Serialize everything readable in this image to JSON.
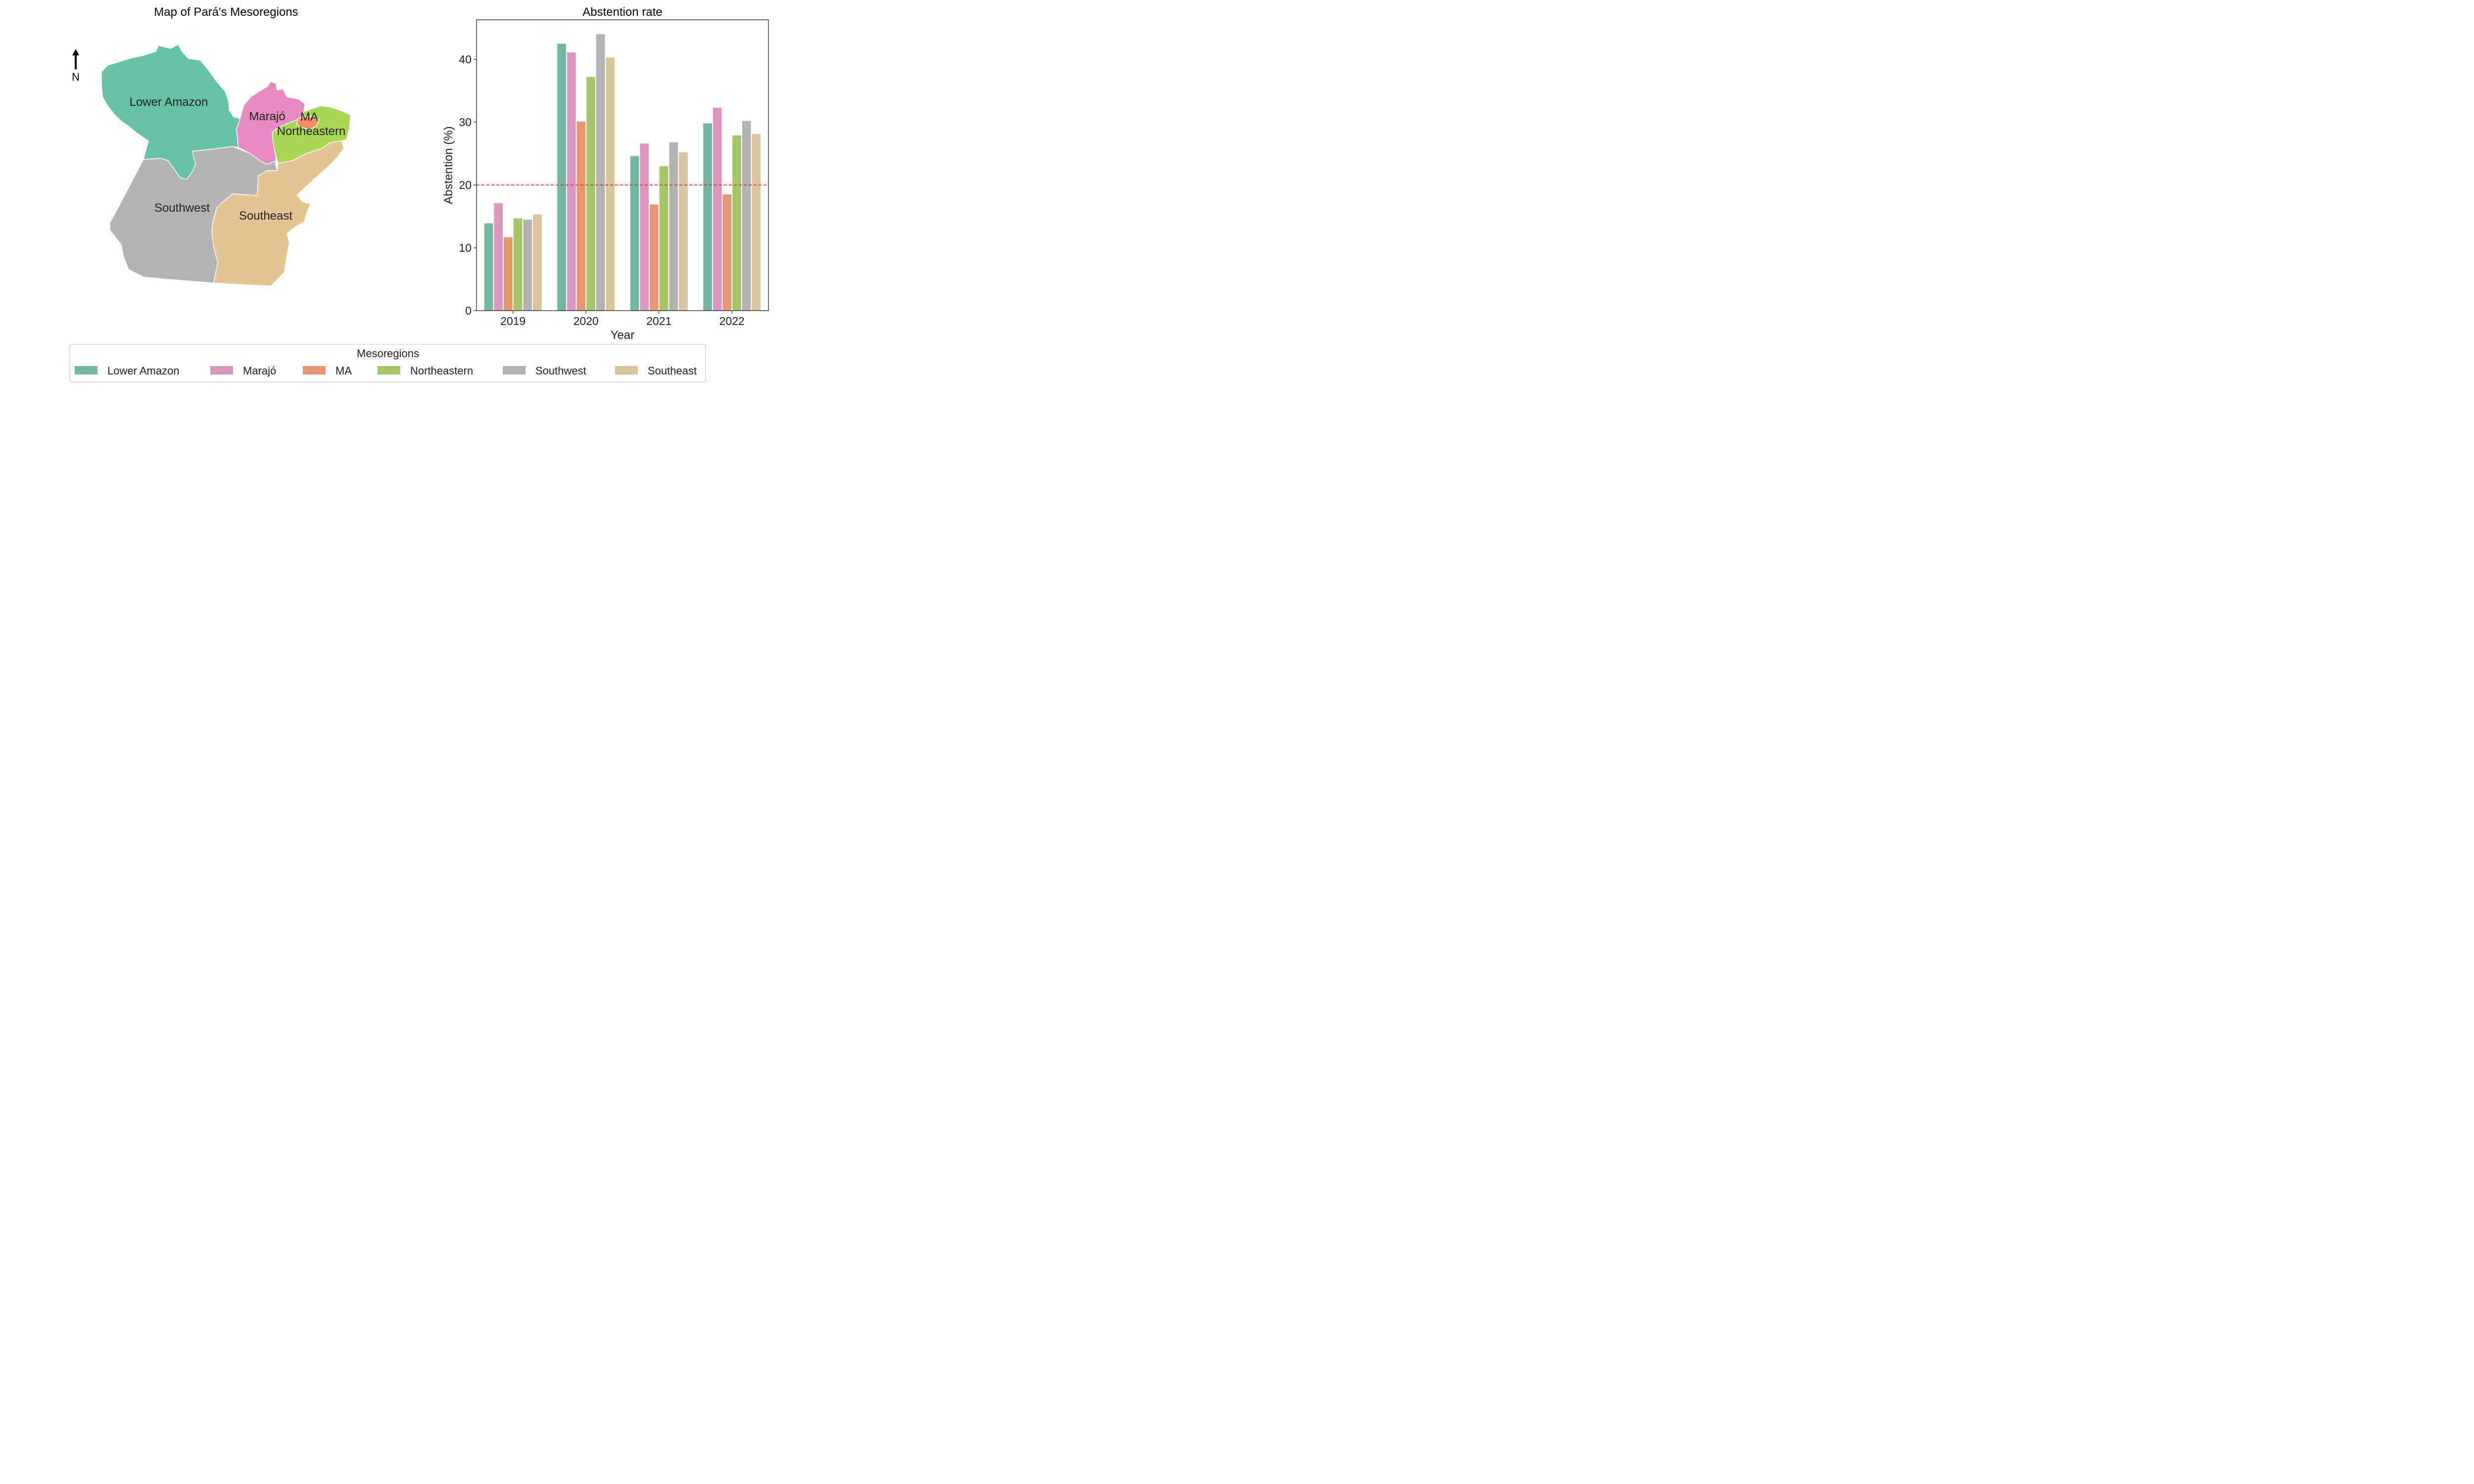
{
  "map": {
    "title": "Map of Pará's Mesoregions",
    "north_label": "N",
    "regions": [
      {
        "name": "Lower Amazon",
        "color": "#66c2a5"
      },
      {
        "name": "Marajó",
        "color": "#e78ac3"
      },
      {
        "name": "MA",
        "color": "#fc8d62"
      },
      {
        "name": "Northeastern",
        "color": "#a6d854"
      },
      {
        "name": "Southwest",
        "color": "#b3b3b3"
      },
      {
        "name": "Southeast",
        "color": "#e5c494"
      }
    ]
  },
  "legend": {
    "title": "Mesoregions",
    "items": [
      {
        "label": "Lower Amazon",
        "color": "#73b5a1"
      },
      {
        "label": "Marajó",
        "color": "#da96c0"
      },
      {
        "label": "MA",
        "color": "#e89572"
      },
      {
        "label": "Northeastern",
        "color": "#a3c766"
      },
      {
        "label": "Southwest",
        "color": "#b3b3b3"
      },
      {
        "label": "Southeast",
        "color": "#dbc39b"
      }
    ]
  },
  "chart_data": {
    "type": "bar",
    "title": "Abstention rate",
    "xlabel": "Year",
    "ylabel": "Abstention (%)",
    "categories": [
      "2019",
      "2020",
      "2021",
      "2022"
    ],
    "ylim": [
      0,
      46.3
    ],
    "yticks": [
      0,
      10,
      20,
      30,
      40
    ],
    "reference_line": {
      "value": 20,
      "color": "#e41a1c",
      "style": "dashed"
    },
    "grid": false,
    "series": [
      {
        "name": "Lower Amazon",
        "color": "#73b5a1",
        "values": [
          13.9,
          42.5,
          24.6,
          29.8
        ]
      },
      {
        "name": "Marajó",
        "color": "#da96c0",
        "values": [
          17.1,
          41.1,
          26.6,
          32.3
        ]
      },
      {
        "name": "MA",
        "color": "#e89572",
        "values": [
          11.7,
          30.1,
          16.9,
          18.5
        ]
      },
      {
        "name": "Northeastern",
        "color": "#a3c766",
        "values": [
          14.7,
          37.2,
          23.0,
          27.9
        ]
      },
      {
        "name": "Southwest",
        "color": "#b3b3b3",
        "values": [
          14.5,
          44.0,
          26.8,
          30.2
        ]
      },
      {
        "name": "Southeast",
        "color": "#dbc39b",
        "values": [
          15.3,
          40.3,
          25.2,
          28.1
        ]
      }
    ]
  }
}
